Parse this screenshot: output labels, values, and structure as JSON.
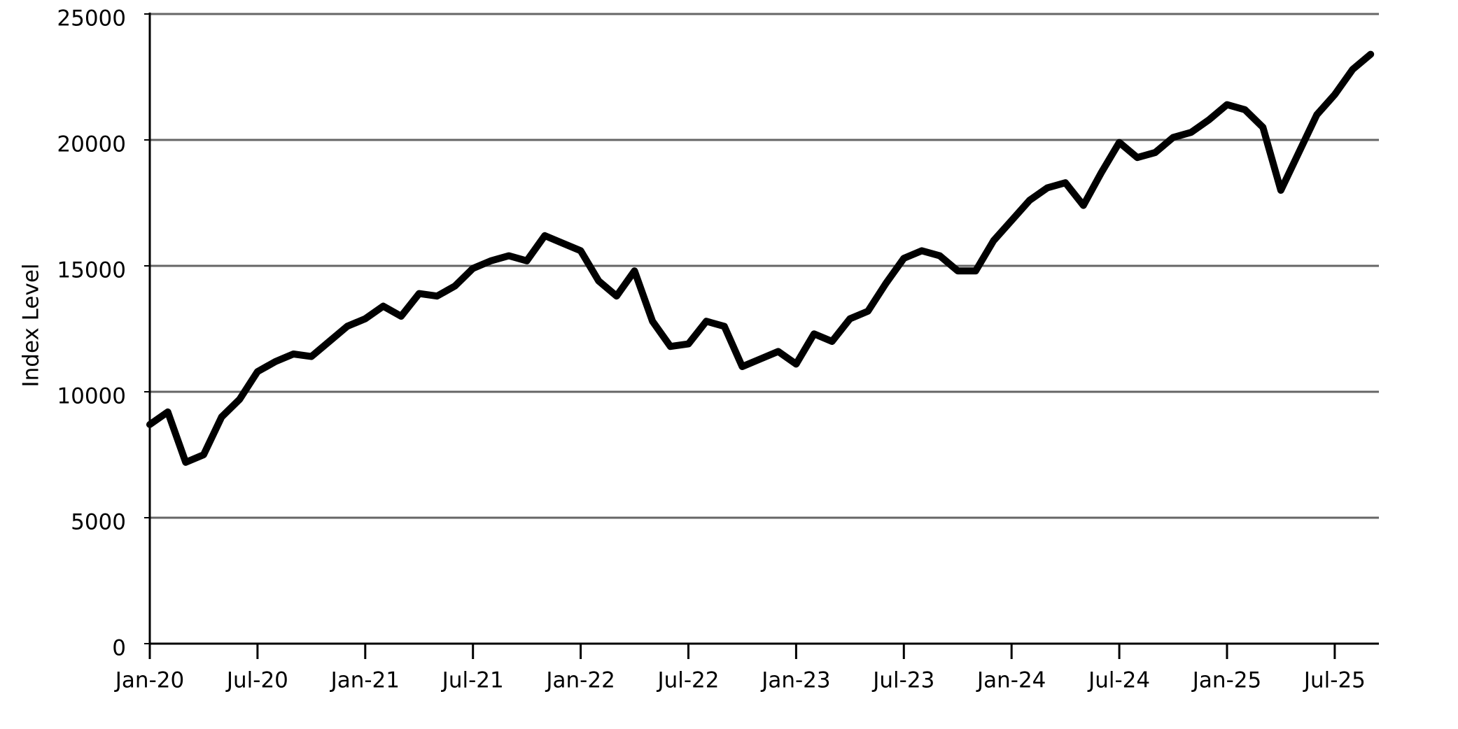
{
  "chart_data": {
    "type": "line",
    "y_label": "Index Level",
    "categories": [
      "Jan-20",
      null,
      null,
      null,
      null,
      null,
      "Jul-20",
      null,
      null,
      null,
      null,
      null,
      "Jan-21",
      null,
      null,
      null,
      null,
      null,
      "Jul-21",
      null,
      null,
      null,
      null,
      null,
      "Jan-22",
      null,
      null,
      null,
      null,
      null,
      "Jul-22",
      null,
      null,
      null,
      null,
      null,
      "Jan-23",
      null,
      null,
      null,
      null,
      null,
      "Jul-23",
      null,
      null,
      null,
      null,
      null,
      "Jan-24",
      null,
      null,
      null,
      null,
      null,
      "Jul-24",
      null,
      null,
      null,
      null,
      null,
      "Jan-25",
      null,
      null,
      null,
      null,
      null,
      "Jul-25",
      null,
      null
    ],
    "series": [
      {
        "name": "Index Level",
        "color": "#000000",
        "values": [
          8700,
          9200,
          7200,
          7500,
          9000,
          9700,
          10800,
          11200,
          11500,
          11400,
          12000,
          12600,
          12900,
          13400,
          13000,
          13900,
          13800,
          14200,
          14900,
          15200,
          15400,
          15200,
          16200,
          15900,
          15600,
          14400,
          13800,
          14800,
          12800,
          11800,
          11900,
          12800,
          12600,
          11000,
          11300,
          11600,
          11100,
          12300,
          12000,
          12900,
          13200,
          14300,
          15300,
          15600,
          15400,
          14800,
          14800,
          16000,
          16800,
          17600,
          18100,
          18300,
          17400,
          18700,
          19900,
          19300,
          19500,
          20100,
          20300,
          20800,
          21400,
          21200,
          20500,
          18000,
          19500,
          21000,
          21800,
          22800,
          23400
        ]
      }
    ],
    "ylim": [
      0,
      25000
    ],
    "yticks": [
      0,
      5000,
      10000,
      15000,
      20000,
      25000
    ],
    "grid": true
  }
}
